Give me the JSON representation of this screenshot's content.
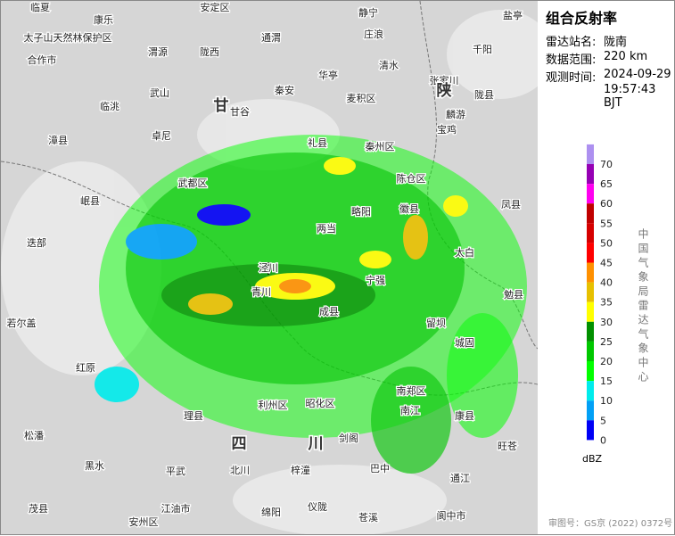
{
  "panel": {
    "title": "组合反射率",
    "station_label": "雷达站名:",
    "station": "陇南",
    "range_label": "数据范围:",
    "range": "220 km",
    "time_label": "观测时间:",
    "date": "2024-09-29",
    "time": "19:57:43 BJT"
  },
  "legend": {
    "unit": "dBZ",
    "agency": "中国气象局雷达气象中心",
    "levels": [
      {
        "value": 70,
        "color": "#ad90f0"
      },
      {
        "value": 65,
        "color": "#9600b4"
      },
      {
        "value": 60,
        "color": "#ff00f0"
      },
      {
        "value": 55,
        "color": "#c00000"
      },
      {
        "value": 50,
        "color": "#d60000"
      },
      {
        "value": 45,
        "color": "#ff0000"
      },
      {
        "value": 40,
        "color": "#ff9000"
      },
      {
        "value": 35,
        "color": "#e7c000"
      },
      {
        "value": 30,
        "color": "#ffff00"
      },
      {
        "value": 25,
        "color": "#019000"
      },
      {
        "value": 20,
        "color": "#00c800"
      },
      {
        "value": 15,
        "color": "#01ff00"
      },
      {
        "value": 10,
        "color": "#00ecec"
      },
      {
        "value": 5,
        "color": "#01a0f6"
      },
      {
        "value": 0,
        "color": "#0000f6"
      }
    ]
  },
  "footer": "审图号：GS京 (2022) 0372号",
  "map": {
    "provinces": [
      "甘",
      "陕",
      "四",
      "川"
    ],
    "places": [
      "临夏",
      "康乐",
      "太子山天然林保护区",
      "合作市",
      "临洮",
      "渭源",
      "陇西",
      "安定区",
      "通渭",
      "静宁",
      "庄浪",
      "华亭",
      "秦安",
      "甘谷",
      "武山",
      "漳县",
      "卓尼",
      "岷县",
      "迭部",
      "若尔盖",
      "红原",
      "松潘",
      "黑水",
      "茂县",
      "理县",
      "平武",
      "北川",
      "江油市",
      "安州区",
      "绵阳",
      "梓潼",
      "剑阁",
      "昭化区",
      "利州区",
      "青川",
      "武都区",
      "礼县",
      "秦州区",
      "麦积区",
      "清水",
      "张家川",
      "陇县",
      "千阳",
      "麟游",
      "宝鸡",
      "陈仓区",
      "凤县",
      "太白",
      "留坝",
      "勉县",
      "城固",
      "南郑区",
      "宁强",
      "略阳",
      "徽县",
      "两当",
      "成县",
      "康县",
      "南江",
      "旺苍",
      "通江",
      "巴中",
      "苍溪",
      "阆中市",
      "仪陇",
      "盐亭",
      "泾川"
    ]
  }
}
